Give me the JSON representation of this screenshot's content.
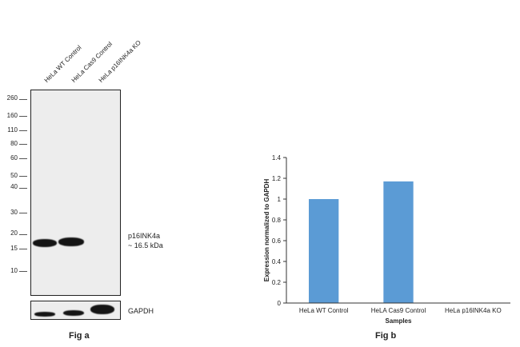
{
  "fig_a": {
    "caption": "Fig a",
    "lane_labels": [
      "HeLa WT Control",
      "HeLa Cas9 Control",
      "HeLa p16INK4a  KO"
    ],
    "mw_markers": [
      "260",
      "160",
      "110",
      "80",
      "60",
      "50",
      "40",
      "30",
      "20",
      "15",
      "10"
    ],
    "protein_name": "p16INK4a",
    "protein_size": "~ 16.5 kDa",
    "loading_control": "GAPDH"
  },
  "chart_data": {
    "type": "bar",
    "title": "",
    "caption": "Fig b",
    "xlabel": "Samples",
    "ylabel": "Expression normalized to GAPDH",
    "categories": [
      "HeLa WT Control",
      "HeLA Cas9 Control",
      "HeLa p16INK4a KO"
    ],
    "values": [
      1.0,
      1.17,
      0.0
    ],
    "ylim": [
      0,
      1.4
    ],
    "yticks": [
      "0",
      "0.2",
      "0.4",
      "0.6",
      "0.8",
      "1",
      "1.2",
      "1.4"
    ],
    "bar_color": "#5b9bd5",
    "grid": false,
    "legend": false
  }
}
